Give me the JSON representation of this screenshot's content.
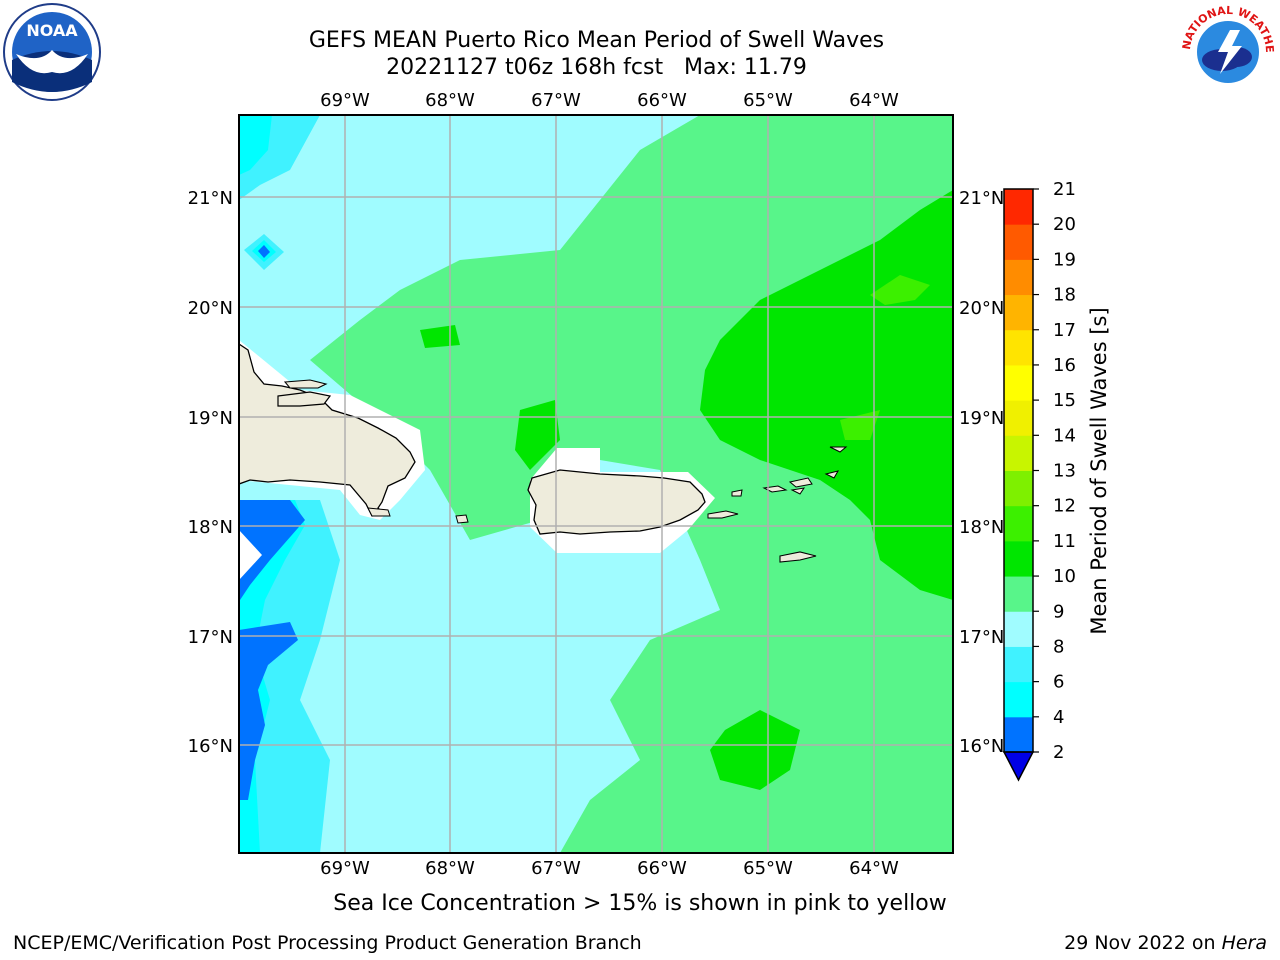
{
  "header": {
    "title_line1": "GEFS MEAN Puerto Rico Mean Period of Swell Waves",
    "title_line2": "20221127 t06z 168h fcst   Max: 11.79"
  },
  "map": {
    "lon_labels": [
      "69°W",
      "68°W",
      "67°W",
      "66°W",
      "65°W",
      "64°W"
    ],
    "lat_labels": [
      "21°N",
      "20°N",
      "19°N",
      "18°N",
      "17°N",
      "16°N"
    ],
    "colors": {
      "land": "#eeecdc",
      "grid": "#b0b0b0",
      "c2": "#0073ff",
      "c4": "#00ffff",
      "c6": "#40f2ff",
      "c8": "#a0fcff",
      "c9": "#58f58a",
      "c10": "#00e600",
      "c11": "#3cf000"
    }
  },
  "colorbar": {
    "label": "Mean Period of Swell Waves [s]",
    "ticks": [
      "2",
      "4",
      "6",
      "8",
      "9",
      "10",
      "11",
      "12",
      "13",
      "14",
      "15",
      "16",
      "17",
      "18",
      "19",
      "20",
      "21"
    ],
    "band_colors": [
      "#0073ff",
      "#00ffff",
      "#40f2ff",
      "#a0fcff",
      "#58f58a",
      "#00e600",
      "#3cf000",
      "#7ef000",
      "#c8f500",
      "#f0f000",
      "#ffff00",
      "#ffe400",
      "#ffb400",
      "#ff8c00",
      "#ff5a00",
      "#ff2800"
    ],
    "extend_color": "#0000e6"
  },
  "notes": {
    "sea_ice": "Sea Ice Concentration > 15% is shown in pink to yellow"
  },
  "footer": {
    "left": "NCEP/EMC/Verification Post Processing Product Generation Branch",
    "right_prefix": "29 Nov 2022 on ",
    "right_host": "Hera"
  },
  "logos": {
    "noaa_text": "NOAA",
    "nws_text": "NATIONAL WEATHER SERVICE"
  }
}
